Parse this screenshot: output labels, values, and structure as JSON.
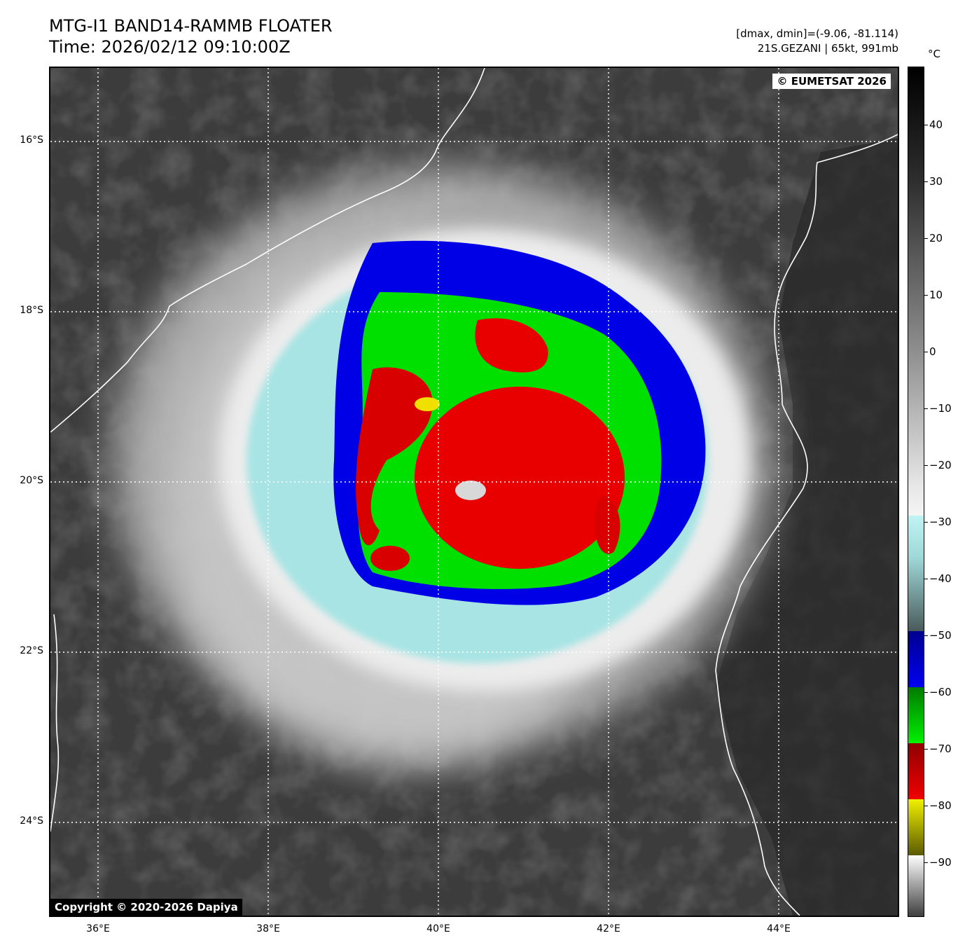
{
  "header": {
    "title_line1": "MTG-I1 BAND14-RAMMB FLOATER",
    "title_line2": "Time: 2026/02/12 09:10:00Z",
    "info_line1": "[dmax, dmin]=(-9.06, -81.114)",
    "info_line2": "21S.GEZANI | 65kt, 991mb"
  },
  "map": {
    "credit_top": "© EUMETSAT 2026",
    "credit_bottom": "Copyright © 2020-2026 Dapiya",
    "lat_labels": [
      "16°S",
      "18°S",
      "20°S",
      "22°S",
      "24°S"
    ],
    "lon_labels": [
      "36°E",
      "38°E",
      "40°E",
      "42°E",
      "44°E"
    ]
  },
  "colorbar": {
    "unit": "°C",
    "ticks": [
      "40",
      "30",
      "20",
      "10",
      "0",
      "−10",
      "−20",
      "−30",
      "−40",
      "−50",
      "−60",
      "−70",
      "−80",
      "−90"
    ],
    "colors": {
      "warm": "#2d2d2d",
      "cold_cyan": "#bff4f4",
      "blue": "#0000f0",
      "green": "#00f000",
      "red": "#f00000",
      "yellow": "#f0f000"
    }
  }
}
